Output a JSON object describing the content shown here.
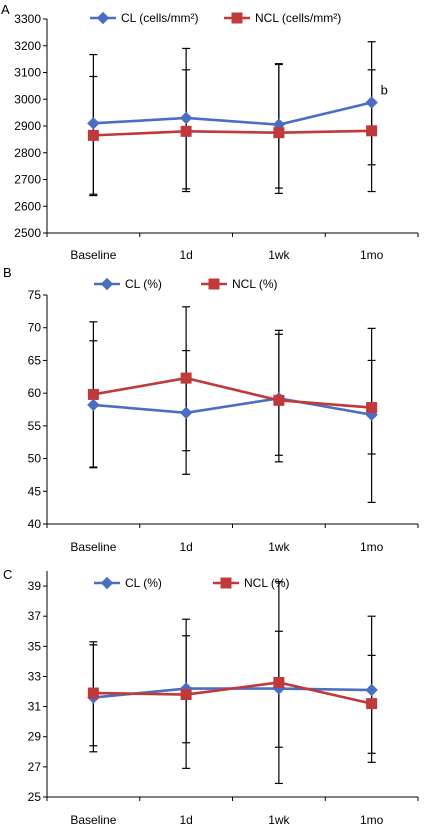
{
  "chart_data": [
    {
      "type": "line",
      "panel_label": "A",
      "categories": [
        "Baseline",
        "1d",
        "1wk",
        "1mo"
      ],
      "ylim": [
        2500,
        3300
      ],
      "yticks": [
        2500,
        2600,
        2700,
        2800,
        2900,
        3000,
        3100,
        3200,
        3300
      ],
      "legend_position": "top",
      "series": [
        {
          "name": "CL (cells/mm²)",
          "color": "#4a6fc2",
          "marker": "diamond",
          "values": [
            2910,
            2930,
            2905,
            2988
          ],
          "error_low": [
            2640,
            2665,
            2668,
            2755
          ],
          "error_high": [
            3167,
            3110,
            3130,
            3215
          ]
        },
        {
          "name": "NCL (cells/mm²)",
          "color": "#c0393b",
          "marker": "square",
          "values": [
            2865,
            2880,
            2875,
            2882
          ],
          "error_low": [
            2645,
            2655,
            2648,
            2655
          ],
          "error_high": [
            3085,
            3190,
            3133,
            3110
          ]
        }
      ],
      "annotations": [
        {
          "category": "1mo",
          "series": "CL (cells/mm²)",
          "text": "b"
        }
      ]
    },
    {
      "type": "line",
      "panel_label": "B",
      "categories": [
        "Baseline",
        "1d",
        "1wk",
        "1mo"
      ],
      "ylim": [
        40,
        75
      ],
      "yticks": [
        40,
        45,
        50,
        55,
        60,
        65,
        70,
        75
      ],
      "legend_position": "top",
      "series": [
        {
          "name": "CL (%)",
          "color": "#4a6fc2",
          "marker": "diamond",
          "values": [
            58.2,
            57.0,
            59.2,
            56.7
          ],
          "error_low": [
            48.6,
            51.2,
            50.5,
            43.3
          ],
          "error_high": [
            68.0,
            66.5,
            69.6,
            65.0
          ]
        },
        {
          "name": "NCL (%)",
          "color": "#c0393b",
          "marker": "square",
          "values": [
            59.8,
            62.3,
            58.9,
            57.8
          ],
          "error_low": [
            48.7,
            47.6,
            49.5,
            50.7
          ],
          "error_high": [
            70.9,
            73.2,
            69.0,
            69.9
          ]
        }
      ],
      "annotations": []
    },
    {
      "type": "line",
      "panel_label": "C",
      "categories": [
        "Baseline",
        "1d",
        "1wk",
        "1mo"
      ],
      "ylim": [
        25,
        40
      ],
      "yticks": [
        25,
        27,
        29,
        31,
        33,
        35,
        37,
        39
      ],
      "legend_position": "top",
      "series": [
        {
          "name": "CL (%)",
          "color": "#4a6fc2",
          "marker": "diamond",
          "values": [
            31.6,
            32.2,
            32.2,
            32.1
          ],
          "error_low": [
            28.0,
            26.9,
            25.9,
            27.9
          ],
          "error_high": [
            35.3,
            36.8,
            39.3,
            37.0
          ]
        },
        {
          "name": "NCL (%)",
          "color": "#c0393b",
          "marker": "square",
          "values": [
            31.9,
            31.8,
            32.6,
            31.2
          ],
          "error_low": [
            28.4,
            28.6,
            28.3,
            27.3
          ],
          "error_high": [
            35.1,
            35.7,
            36.0,
            34.4
          ]
        }
      ],
      "annotations": []
    }
  ]
}
